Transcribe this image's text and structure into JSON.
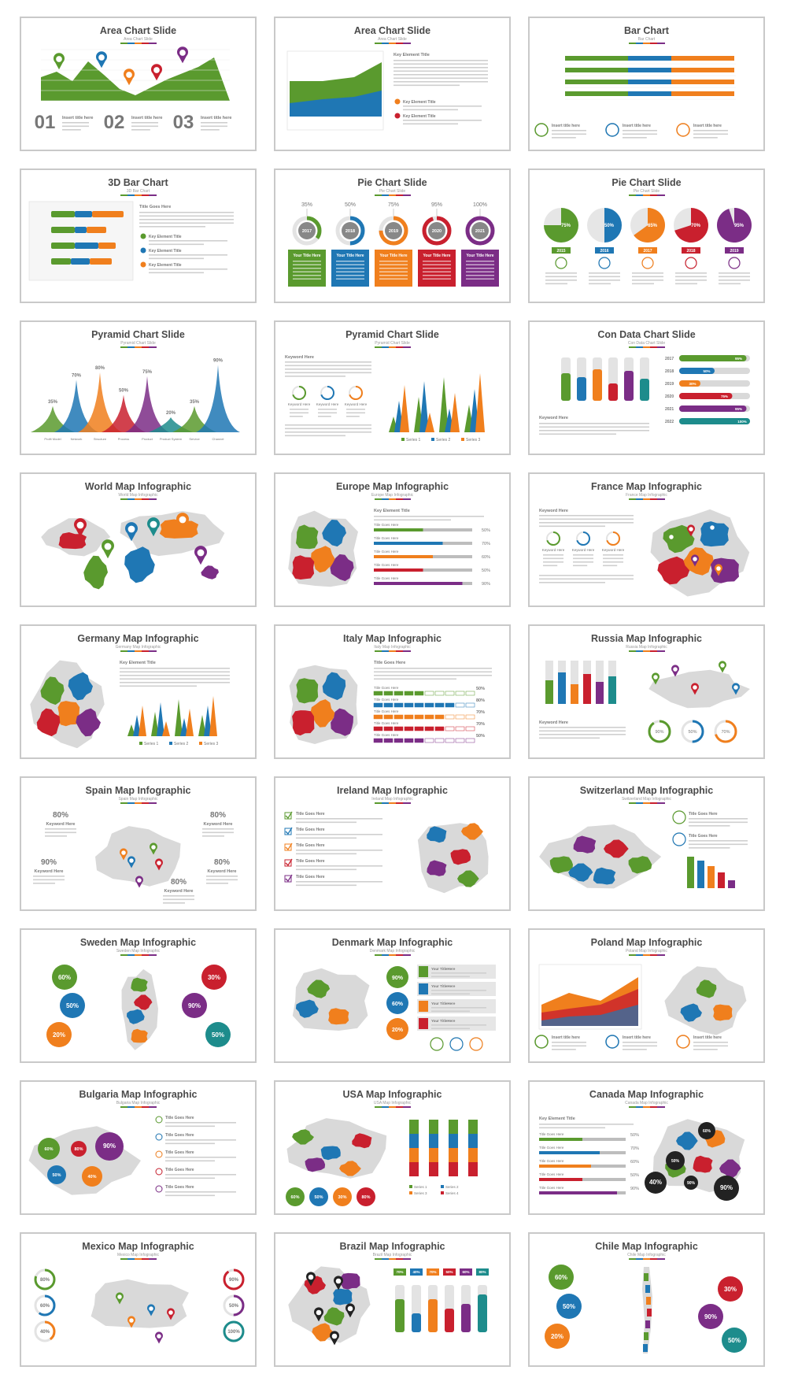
{
  "colors": {
    "green": "#5a9a2e",
    "blue": "#1f77b4",
    "orange": "#f07f1d",
    "red": "#c9202e",
    "purple": "#7b2d86",
    "teal": "#1d8c8c",
    "map_gray": "#d9d9d9"
  },
  "slides": [
    {
      "title": "Area Chart Slide",
      "subtitle": "Area Chart Slide",
      "kind": "area",
      "numbers": [
        "01",
        "02",
        "03"
      ],
      "insert_label": "Insert title here"
    },
    {
      "title": "Area Chart Slide",
      "subtitle": "Area Chart Slide",
      "kind": "area2",
      "key_label": "Key Element Title"
    },
    {
      "title": "Bar Chart",
      "subtitle": "Bar Chart",
      "kind": "hbar",
      "insert_label": "Insert title here"
    },
    {
      "title": "3D Bar Chart",
      "subtitle": "3D Bar Chart",
      "kind": "bar3d",
      "title_label": "Title Goes Here",
      "key_label": "Key Element Title"
    },
    {
      "title": "Pie Chart Slide",
      "subtitle": "Pie Chart Slide",
      "kind": "donuts",
      "percents": [
        "35%",
        "50%",
        "75%",
        "95%",
        "100%"
      ],
      "years": [
        "2017",
        "2018",
        "2019",
        "2020",
        "2021"
      ],
      "box_label": "Your Title Here"
    },
    {
      "title": "Pie Chart Slide",
      "subtitle": "Pie Chart Slide",
      "kind": "pies",
      "percents": [
        "75%",
        "50%",
        "65%",
        "70%",
        "95%"
      ],
      "years": [
        "2015",
        "2016",
        "2017",
        "2018",
        "2019"
      ]
    },
    {
      "title": "Pyramid Chart Slide",
      "subtitle": "Pyramid Chart Slide",
      "kind": "pyramid",
      "percents": [
        "35%",
        "70%",
        "80%",
        "50%",
        "75%",
        "20%",
        "35%",
        "90%"
      ],
      "labels": [
        "Profit Model",
        "Network",
        "Structure",
        "Process",
        "Product",
        "Product System",
        "Service",
        "Channel"
      ]
    },
    {
      "title": "Pyramid Chart Slide",
      "subtitle": "Pyramid Chart Slide",
      "kind": "pyramid2",
      "keyword_label": "Keyword Here",
      "legend": [
        "Series 1",
        "Series 2",
        "Series 3"
      ]
    },
    {
      "title": "Con Data Chart Slide",
      "subtitle": "Con Data Chart Slide",
      "kind": "condata",
      "years": [
        "2017",
        "2018",
        "2019",
        "2020",
        "2021",
        "2022"
      ],
      "percents": [
        "95%",
        "50%",
        "30%",
        "75%",
        "95%",
        "100%"
      ],
      "keyword_label": "Keyword Here"
    },
    {
      "title": "World Map Infographic",
      "subtitle": "World Map Infographic",
      "kind": "map",
      "map": "world"
    },
    {
      "title": "Europe Map Infographic",
      "subtitle": "Europe Map Infographic",
      "kind": "mapbars",
      "map": "europe",
      "percents": [
        "50%",
        "70%",
        "60%",
        "50%",
        "90%"
      ],
      "key_label": "Key Element Title",
      "title_label": "Title Goes Here"
    },
    {
      "title": "France Map Infographic",
      "subtitle": "France Map Infographic",
      "kind": "mapleft",
      "map": "france",
      "keyword_label": "Keyword Here"
    },
    {
      "title": "Germany Map Infographic",
      "subtitle": "Germany Map Infographic",
      "kind": "mapchart",
      "map": "germany",
      "key_label": "Key Element Title",
      "legend": [
        "Series 1",
        "Series 2",
        "Series 3"
      ]
    },
    {
      "title": "Italy Map Infographic",
      "subtitle": "Italy Map Infographic",
      "kind": "mapbars2",
      "map": "italy",
      "percents": [
        "50%",
        "80%",
        "70%",
        "70%",
        "50%"
      ],
      "title_label": "Title Goes Here"
    },
    {
      "title": "Russia Map Infographic",
      "subtitle": "Russia Map Infographic",
      "kind": "maprings",
      "map": "russia",
      "percents": [
        "90%",
        "50%",
        "70%"
      ],
      "keyword_label": "Keyword Here"
    },
    {
      "title": "Spain Map Infographic",
      "subtitle": "Spain Map Infographic",
      "kind": "mapkeywords",
      "map": "spain",
      "percents": [
        "80%",
        "80%",
        "90%",
        "80%",
        "80%"
      ],
      "keyword_label": "Keyword Here"
    },
    {
      "title": "Ireland Map Infographic",
      "subtitle": "Ireland Map Infographic",
      "kind": "mapchecks",
      "map": "ireland",
      "title_label": "Title Goes Here"
    },
    {
      "title": "Switzerland Map Infographic",
      "subtitle": "Switzerland Map Infographic",
      "kind": "mapswiss",
      "map": "switzerland",
      "title_label": "Title Goes Here"
    },
    {
      "title": "Sweden Map Infographic",
      "subtitle": "Sweden Map Infographic",
      "kind": "mapcircles",
      "map": "sweden",
      "percents": [
        "60%",
        "50%",
        "20%",
        "30%",
        "90%",
        "50%"
      ]
    },
    {
      "title": "Denmark Map Infographic",
      "subtitle": "Denmark Map Infographic",
      "kind": "mapdenmark",
      "map": "denmark",
      "percents": [
        "90%",
        "60%",
        "20%"
      ],
      "box_label": "Your TitleHere"
    },
    {
      "title": "Poland Map Infographic",
      "subtitle": "Poland Map Infographic",
      "kind": "mappoland",
      "map": "poland",
      "insert_label": "Insert title here"
    },
    {
      "title": "Bulgaria Map Infographic",
      "subtitle": "Bulgaria Map Infographic",
      "kind": "mapbulgaria",
      "map": "bulgaria",
      "percents": [
        "60%",
        "80%",
        "90%",
        "50%",
        "40%"
      ],
      "title_label": "Title Goes Here"
    },
    {
      "title": "USA Map Infographic",
      "subtitle": "USA Map Infographic",
      "kind": "mapusa",
      "map": "usa",
      "percents": [
        "60%",
        "50%",
        "30%",
        "80%"
      ],
      "legend": [
        "Series 1",
        "Series 2",
        "Series 3",
        "Series 4"
      ]
    },
    {
      "title": "Canada Map Infographic",
      "subtitle": "Canada Map Infographic",
      "kind": "mapcanada",
      "map": "canada",
      "percents": [
        "50%",
        "70%",
        "60%",
        "50%",
        "90%"
      ],
      "circles": [
        "60%",
        "50%",
        "40%",
        "90%",
        "90%"
      ],
      "key_label": "Key Element Title",
      "title_label": "Title Goes Here"
    },
    {
      "title": "Mexico Map Infographic",
      "subtitle": "Mexico Map Infographic",
      "kind": "mapmexico",
      "map": "mexico",
      "percents_left": [
        "80%",
        "60%",
        "40%"
      ],
      "percents_right": [
        "90%",
        "50%",
        "100%"
      ]
    },
    {
      "title": "Brazil Map Infographic",
      "subtitle": "Brazil Map Infographic",
      "kind": "mapbrazil",
      "map": "brazil",
      "percents": [
        "70%",
        "40%",
        "70%",
        "50%",
        "60%",
        "80%"
      ]
    },
    {
      "title": "Chile Map Infographic",
      "subtitle": "Chile Map Infographic",
      "kind": "mapchile",
      "map": "chile",
      "percents": [
        "60%",
        "50%",
        "20%",
        "30%",
        "90%",
        "50%"
      ]
    }
  ]
}
